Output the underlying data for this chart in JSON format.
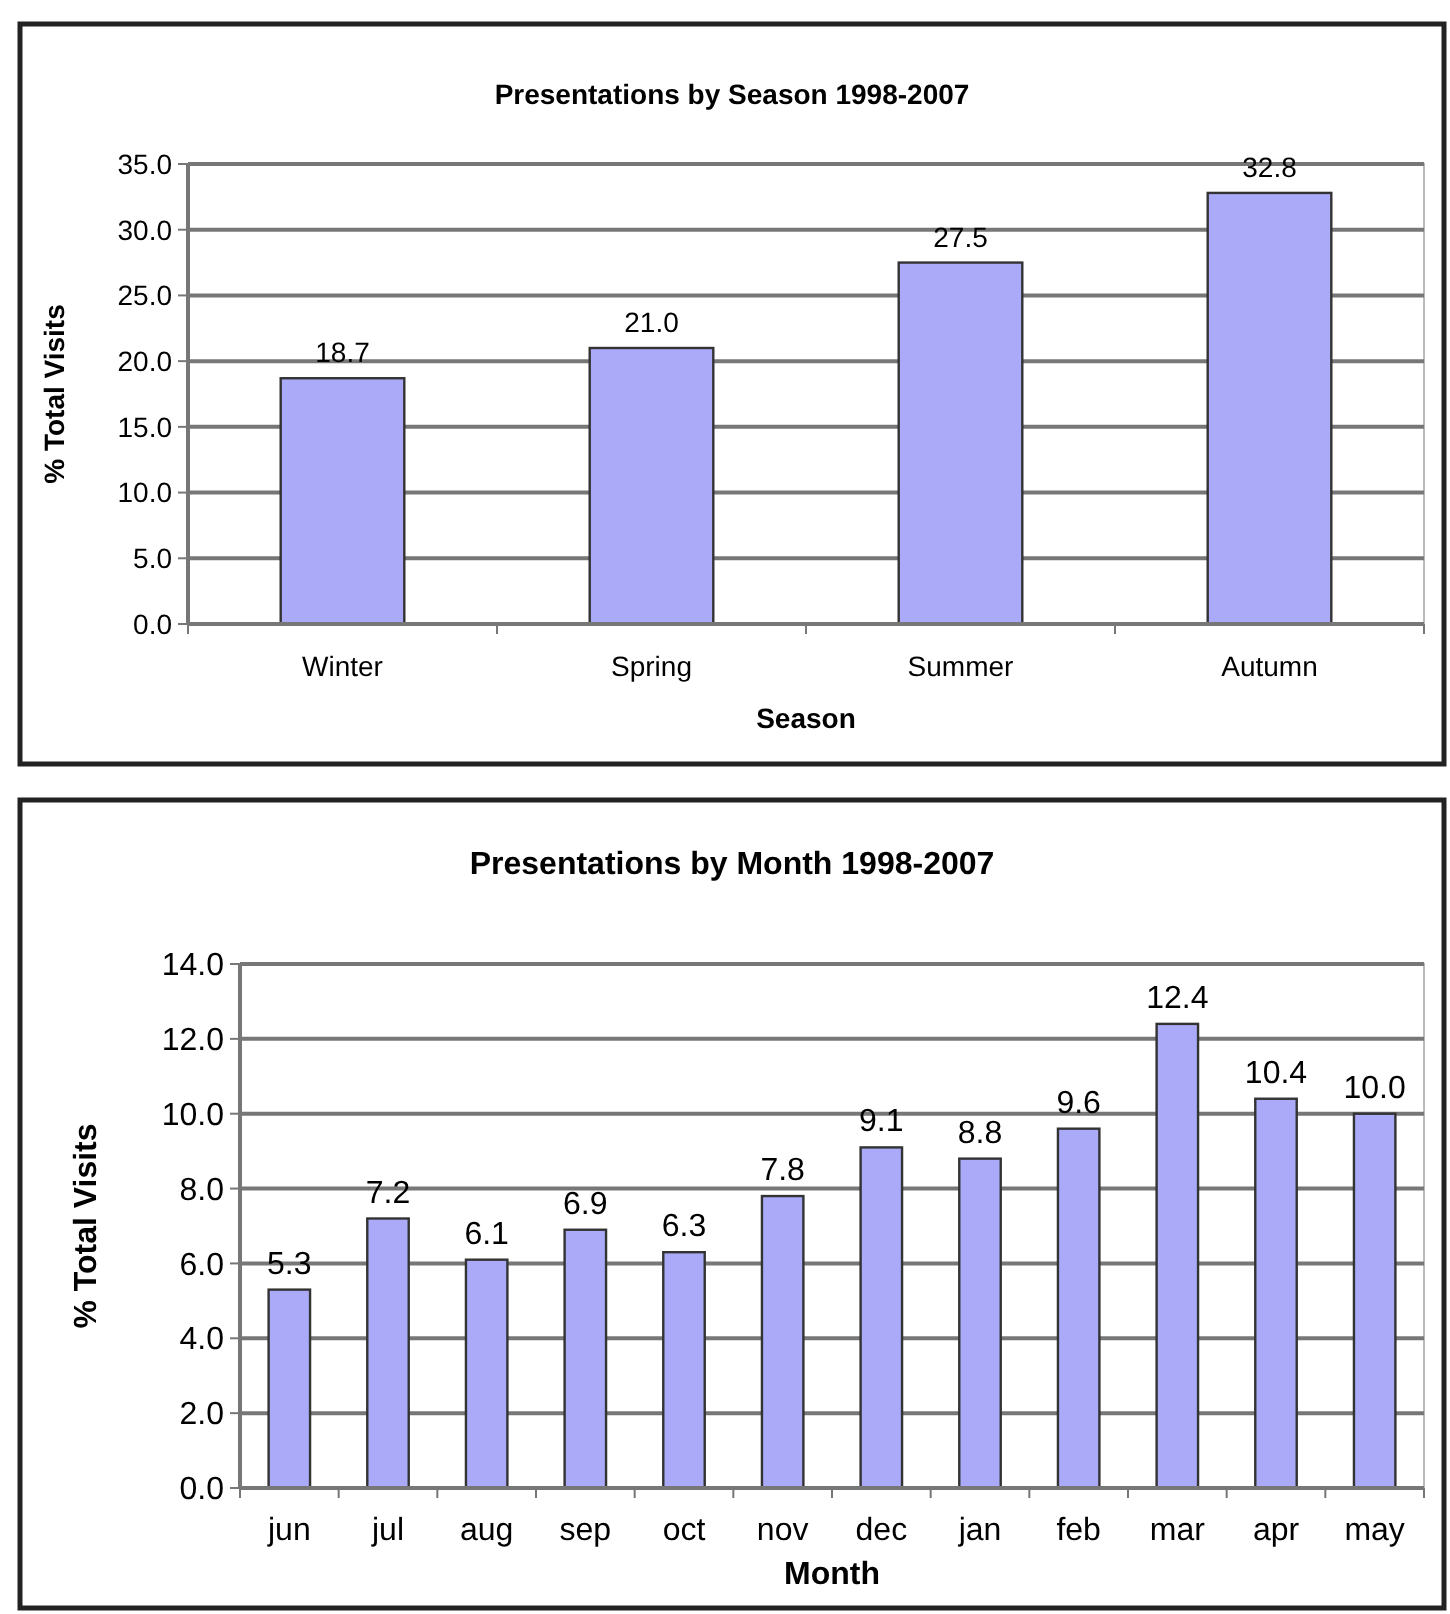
{
  "chart_data": [
    {
      "type": "bar",
      "title": "Presentations by Season 1998-2007",
      "xlabel": "Season",
      "ylabel": "% Total Visits",
      "categories": [
        "Winter",
        "Spring",
        "Summer",
        "Autumn"
      ],
      "values": [
        18.7,
        21.0,
        27.5,
        32.8
      ],
      "value_labels": [
        "18.7",
        "21.0",
        "27.5",
        "32.8"
      ],
      "color": "#aaaaf8",
      "ylim": [
        0,
        35
      ],
      "yticks": [
        {
          "value": 0,
          "label": "0.0"
        },
        {
          "value": 5,
          "label": "5.0"
        },
        {
          "value": 10,
          "label": "10.0"
        },
        {
          "value": 15,
          "label": "15.0"
        },
        {
          "value": 20,
          "label": "20.0"
        },
        {
          "value": 25,
          "label": "25.0"
        },
        {
          "value": 30,
          "label": "30.0"
        },
        {
          "value": 35,
          "label": "35.0"
        }
      ],
      "grid": "y"
    },
    {
      "type": "bar",
      "title": "Presentations by Month 1998-2007",
      "xlabel": "Month",
      "ylabel": "% Total Visits",
      "categories": [
        "jun",
        "jul",
        "aug",
        "sep",
        "oct",
        "nov",
        "dec",
        "jan",
        "feb",
        "mar",
        "apr",
        "may"
      ],
      "values": [
        5.3,
        7.2,
        6.1,
        6.9,
        6.3,
        7.8,
        9.1,
        8.8,
        9.6,
        12.4,
        10.4,
        10.0
      ],
      "value_labels": [
        "5.3",
        "7.2",
        "6.1",
        "6.9",
        "6.3",
        "7.8",
        "9.1",
        "8.8",
        "9.6",
        "12.4",
        "10.4",
        "10.0"
      ],
      "color": "#aaaaf8",
      "ylim": [
        0,
        14
      ],
      "yticks": [
        {
          "value": 0,
          "label": "0.0"
        },
        {
          "value": 2,
          "label": "2.0"
        },
        {
          "value": 4,
          "label": "4.0"
        },
        {
          "value": 6,
          "label": "6.0"
        },
        {
          "value": 8,
          "label": "8.0"
        },
        {
          "value": 10,
          "label": "10.0"
        },
        {
          "value": 12,
          "label": "12.0"
        },
        {
          "value": 14,
          "label": "14.0"
        }
      ],
      "grid": "y"
    }
  ]
}
